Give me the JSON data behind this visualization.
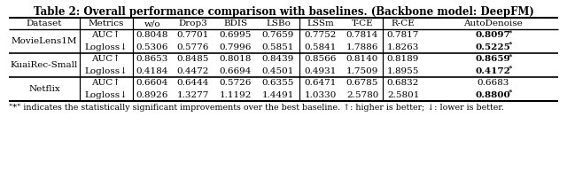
{
  "title": "Table 2: Overall performance comparison with baselines. (Backbone model: DeepFM)",
  "footnote": "\"*\" indicates the statistically significant improvements over the best baseline. ↑: higher is better; ↓: lower is better.",
  "columns": [
    "Dataset",
    "Metrics",
    "w/o",
    "Drop3",
    "BDIS",
    "LSBo",
    "LSSm",
    "T-CE",
    "R-CE",
    "AutoDenoise"
  ],
  "rows": [
    {
      "dataset": "MovieLens1M",
      "metrics": [
        "AUC↑",
        "Logloss↓"
      ],
      "values": [
        [
          "0.8048",
          "0.7701",
          "0.6995",
          "0.7659",
          "0.7752",
          "0.7814",
          "0.7817",
          "0.8097*"
        ],
        [
          "0.5306",
          "0.5776",
          "0.7996",
          "0.5851",
          "0.5841",
          "1.7886",
          "1.8263",
          "0.5225*"
        ]
      ],
      "bold_last": [
        true,
        true
      ]
    },
    {
      "dataset": "KuaiRec-Small",
      "metrics": [
        "AUC↑",
        "Logloss↓"
      ],
      "values": [
        [
          "0.8653",
          "0.8485",
          "0.8018",
          "0.8439",
          "0.8566",
          "0.8140",
          "0.8189",
          "0.8659*"
        ],
        [
          "0.4184",
          "0.4472",
          "0.6694",
          "0.4501",
          "0.4931",
          "1.7509",
          "1.8955",
          "0.4172*"
        ]
      ],
      "bold_last": [
        true,
        true
      ]
    },
    {
      "dataset": "Netflix",
      "metrics": [
        "AUC↑",
        "Logloss↓"
      ],
      "values": [
        [
          "0.6604",
          "0.6444",
          "0.5726",
          "0.6355",
          "0.6471",
          "0.6785",
          "0.6832",
          "0.6683"
        ],
        [
          "0.8926",
          "1.3277",
          "1.1192",
          "1.4491",
          "1.0330",
          "2.5780",
          "2.5801",
          "0.8800*"
        ]
      ],
      "bold_last": [
        false,
        true
      ]
    }
  ],
  "background_color": "#ffffff",
  "font_size": 7.5,
  "title_font_size": 8.5,
  "footnote_font_size": 6.8
}
